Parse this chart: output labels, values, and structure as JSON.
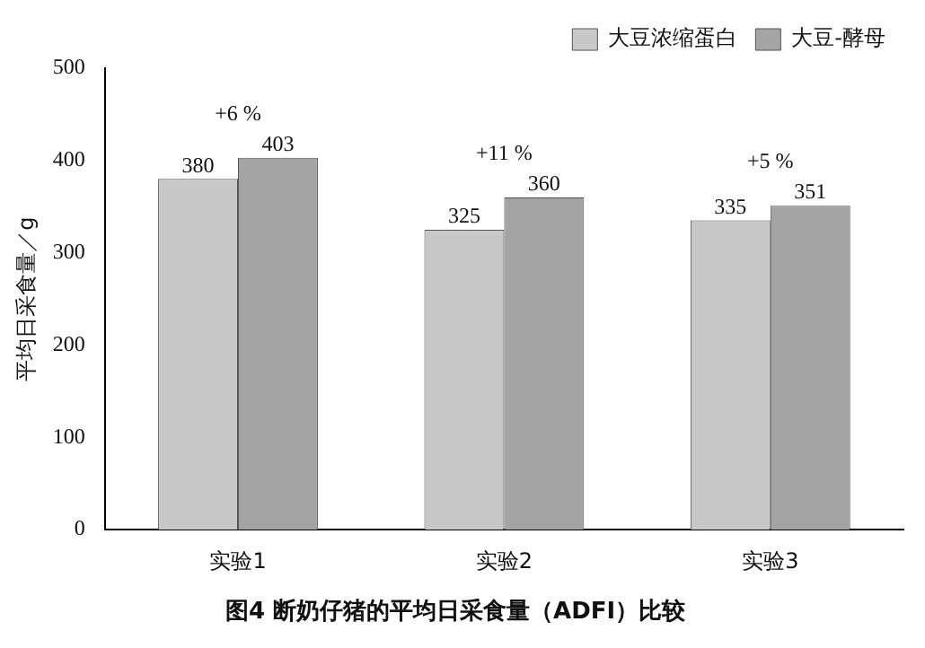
{
  "chart_data": {
    "type": "bar",
    "title": "图4 断奶仔猪的平均日采食量（ADFI）比较",
    "ylabel": "平均日采食量／g",
    "categories": [
      "实验1",
      "实验2",
      "实验3"
    ],
    "series": [
      {
        "name": "大豆浓缩蛋白",
        "color": "#c8c8c8",
        "values": [
          380,
          325,
          335
        ]
      },
      {
        "name": "大豆-酵母",
        "color": "#a4a4a4",
        "values": [
          403,
          360,
          351
        ]
      }
    ],
    "ylim": [
      0,
      500
    ],
    "yticks": [
      0,
      100,
      200,
      300,
      400,
      500
    ],
    "grid": false,
    "legend": "top right",
    "data_labels": true,
    "annotations": [
      "+6 %",
      "+11 %",
      "+5 %"
    ]
  }
}
